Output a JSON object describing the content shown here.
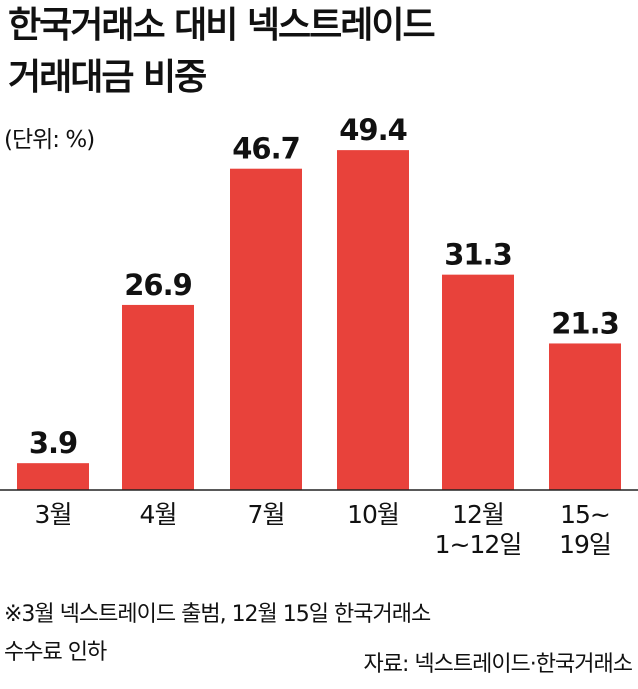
{
  "header": {
    "title_line1": "한국거래소 대비 넥스트레이드",
    "title_line2": "거래대금 비중",
    "unit": "(단위: %)"
  },
  "chart_data": {
    "type": "bar",
    "title": "한국거래소 대비 넥스트레이드 거래대금 비중",
    "categories": [
      "3월",
      "4월",
      "7월",
      "10월",
      "12월\n1~12일",
      "15~\n19일"
    ],
    "values": [
      3.9,
      26.9,
      46.7,
      49.4,
      31.3,
      21.3
    ],
    "value_labels": [
      "3.9",
      "26.9",
      "46.7",
      "49.4",
      "31.3",
      "21.3"
    ],
    "unit": "%",
    "ylim": [
      0,
      55
    ],
    "grid": false,
    "legend": "none",
    "bar_color": "#e8423b"
  },
  "footer": {
    "note": "※3월 넥스트레이드 출범, 12월 15일 한국거래소\n   수수료 인하",
    "source": "자료: 넥스트레이드·한국거래소"
  }
}
